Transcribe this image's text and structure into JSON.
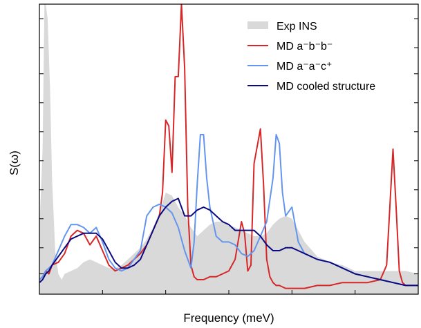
{
  "chart_data": {
    "type": "line",
    "title": "",
    "xlabel": "Frequency (meV)",
    "ylabel": "S(ω)",
    "xlim": [
      0,
      60
    ],
    "ylim": [
      0,
      1
    ],
    "grid": false,
    "legend_position": "top-right",
    "show_tick_labels": false,
    "x_ticks": [
      10,
      20,
      30,
      40,
      50
    ],
    "y_ticks": [
      0.07,
      0.16,
      0.26,
      0.36,
      0.46,
      0.56,
      0.66,
      0.76,
      0.85,
      0.95
    ],
    "series": [
      {
        "name": "Exp INS",
        "style": "area",
        "color": "#d9d9d9",
        "x": [
          0,
          0.5,
          0.8,
          1.0,
          1.3,
          1.7,
          2.0,
          2.5,
          3.0,
          3.5,
          4.0,
          5.0,
          6.0,
          7.0,
          8.0,
          9.0,
          10.0,
          11.0,
          12.0,
          13.0,
          14.0,
          15.0,
          16.0,
          17.0,
          18.0,
          19.0,
          20.0,
          21.0,
          22.0,
          23.0,
          24.0,
          25.0,
          26.0,
          27.0,
          28.0,
          29.0,
          30.0,
          31.0,
          32.0,
          33.0,
          34.0,
          35.0,
          36.0,
          37.0,
          38.0,
          39.0,
          40.0,
          41.0,
          42.0,
          44.0,
          46.0,
          48.0,
          50.0,
          52.0,
          54.0,
          56.0,
          58.0,
          60.0
        ],
        "y": [
          0.22,
          0.5,
          1.0,
          1.0,
          0.95,
          0.7,
          0.4,
          0.15,
          0.07,
          0.05,
          0.07,
          0.08,
          0.09,
          0.11,
          0.12,
          0.11,
          0.1,
          0.09,
          0.09,
          0.1,
          0.12,
          0.14,
          0.16,
          0.19,
          0.23,
          0.28,
          0.35,
          0.34,
          0.3,
          0.27,
          0.23,
          0.2,
          0.22,
          0.24,
          0.25,
          0.25,
          0.24,
          0.23,
          0.22,
          0.21,
          0.2,
          0.2,
          0.21,
          0.24,
          0.26,
          0.27,
          0.26,
          0.22,
          0.18,
          0.13,
          0.11,
          0.1,
          0.08,
          0.08,
          0.08,
          0.08,
          0.08,
          0.07
        ]
      },
      {
        "name": "MD a⁻b⁻b⁻",
        "style": "line",
        "color": "#d62728",
        "x": [
          0,
          0.5,
          1.0,
          1.5,
          2.0,
          3.0,
          4.0,
          5.0,
          6.0,
          7.0,
          8.0,
          9.0,
          10.0,
          11.0,
          12.0,
          13.0,
          14.0,
          15.0,
          16.0,
          17.0,
          18.0,
          19.0,
          19.5,
          20.0,
          20.5,
          21.0,
          21.5,
          22.0,
          22.5,
          23.0,
          23.5,
          24.0,
          24.5,
          25.0,
          26.0,
          27.0,
          28.0,
          29.0,
          30.0,
          31.0,
          32.0,
          32.5,
          33.0,
          33.5,
          34.0,
          35.0,
          35.5,
          36.0,
          36.5,
          37.0,
          37.5,
          38.0,
          39.0,
          40.0,
          42.0,
          44.0,
          46.0,
          48.0,
          50.0,
          52.0,
          54.0,
          55.0,
          55.5,
          56.0,
          56.5,
          57.0,
          57.5,
          58.0,
          60.0
        ],
        "y": [
          0.05,
          0.06,
          0.08,
          0.07,
          0.1,
          0.11,
          0.14,
          0.2,
          0.22,
          0.21,
          0.17,
          0.2,
          0.15,
          0.1,
          0.08,
          0.09,
          0.1,
          0.12,
          0.14,
          0.17,
          0.22,
          0.27,
          0.35,
          0.6,
          0.58,
          0.42,
          0.75,
          0.75,
          1.0,
          0.78,
          0.3,
          0.1,
          0.06,
          0.05,
          0.05,
          0.06,
          0.06,
          0.07,
          0.08,
          0.12,
          0.25,
          0.21,
          0.08,
          0.1,
          0.45,
          0.57,
          0.38,
          0.12,
          0.06,
          0.04,
          0.03,
          0.03,
          0.02,
          0.02,
          0.02,
          0.03,
          0.03,
          0.04,
          0.04,
          0.04,
          0.05,
          0.1,
          0.3,
          0.5,
          0.3,
          0.08,
          0.04,
          0.03,
          0.03
        ]
      },
      {
        "name": "MD a⁻a⁻c⁺",
        "style": "line",
        "color": "#6495ed",
        "x": [
          0,
          0.5,
          1.0,
          1.5,
          2.0,
          3.0,
          4.0,
          5.0,
          6.0,
          7.0,
          8.0,
          9.0,
          10.0,
          11.0,
          12.0,
          13.0,
          14.0,
          15.0,
          16.0,
          17.0,
          18.0,
          19.0,
          20.0,
          21.0,
          22.0,
          23.0,
          24.0,
          24.5,
          25.0,
          25.5,
          26.0,
          26.5,
          27.0,
          28.0,
          29.0,
          30.0,
          31.0,
          32.0,
          33.0,
          34.0,
          35.0,
          36.0,
          37.0,
          37.5,
          38.0,
          38.5,
          39.0,
          40.0,
          41.0,
          42.0,
          44.0,
          46.0,
          48.0,
          50.0,
          52.0,
          54.0,
          56.0,
          58.0,
          60.0
        ],
        "y": [
          0.05,
          0.06,
          0.08,
          0.09,
          0.1,
          0.15,
          0.2,
          0.24,
          0.24,
          0.23,
          0.21,
          0.23,
          0.18,
          0.12,
          0.09,
          0.08,
          0.09,
          0.12,
          0.15,
          0.27,
          0.3,
          0.31,
          0.3,
          0.28,
          0.23,
          0.15,
          0.09,
          0.18,
          0.38,
          0.55,
          0.55,
          0.4,
          0.3,
          0.2,
          0.18,
          0.18,
          0.17,
          0.14,
          0.13,
          0.15,
          0.2,
          0.25,
          0.4,
          0.55,
          0.52,
          0.35,
          0.27,
          0.3,
          0.18,
          0.14,
          0.12,
          0.11,
          0.09,
          0.07,
          0.06,
          0.05,
          0.04,
          0.03,
          0.03
        ]
      },
      {
        "name": "MD cooled structure",
        "style": "line",
        "color": "#0a0a80",
        "x": [
          0,
          0.5,
          1.0,
          1.5,
          2.0,
          3.0,
          4.0,
          5.0,
          6.0,
          7.0,
          8.0,
          9.0,
          10.0,
          11.0,
          12.0,
          13.0,
          14.0,
          15.0,
          16.0,
          17.0,
          18.0,
          19.0,
          20.0,
          21.0,
          22.0,
          23.0,
          24.0,
          25.0,
          26.0,
          27.0,
          28.0,
          29.0,
          30.0,
          31.0,
          32.0,
          33.0,
          34.0,
          35.0,
          36.0,
          37.0,
          38.0,
          39.0,
          40.0,
          41.0,
          42.0,
          43.0,
          44.0,
          46.0,
          48.0,
          50.0,
          52.0,
          54.0,
          56.0,
          58.0,
          60.0
        ],
        "y": [
          0.04,
          0.05,
          0.07,
          0.08,
          0.1,
          0.13,
          0.16,
          0.19,
          0.2,
          0.21,
          0.21,
          0.21,
          0.19,
          0.15,
          0.11,
          0.09,
          0.09,
          0.1,
          0.12,
          0.17,
          0.22,
          0.27,
          0.3,
          0.32,
          0.33,
          0.27,
          0.27,
          0.29,
          0.3,
          0.29,
          0.27,
          0.25,
          0.24,
          0.22,
          0.22,
          0.22,
          0.22,
          0.2,
          0.17,
          0.15,
          0.15,
          0.16,
          0.16,
          0.15,
          0.14,
          0.13,
          0.12,
          0.11,
          0.09,
          0.07,
          0.06,
          0.05,
          0.04,
          0.03,
          0.03
        ]
      }
    ]
  }
}
